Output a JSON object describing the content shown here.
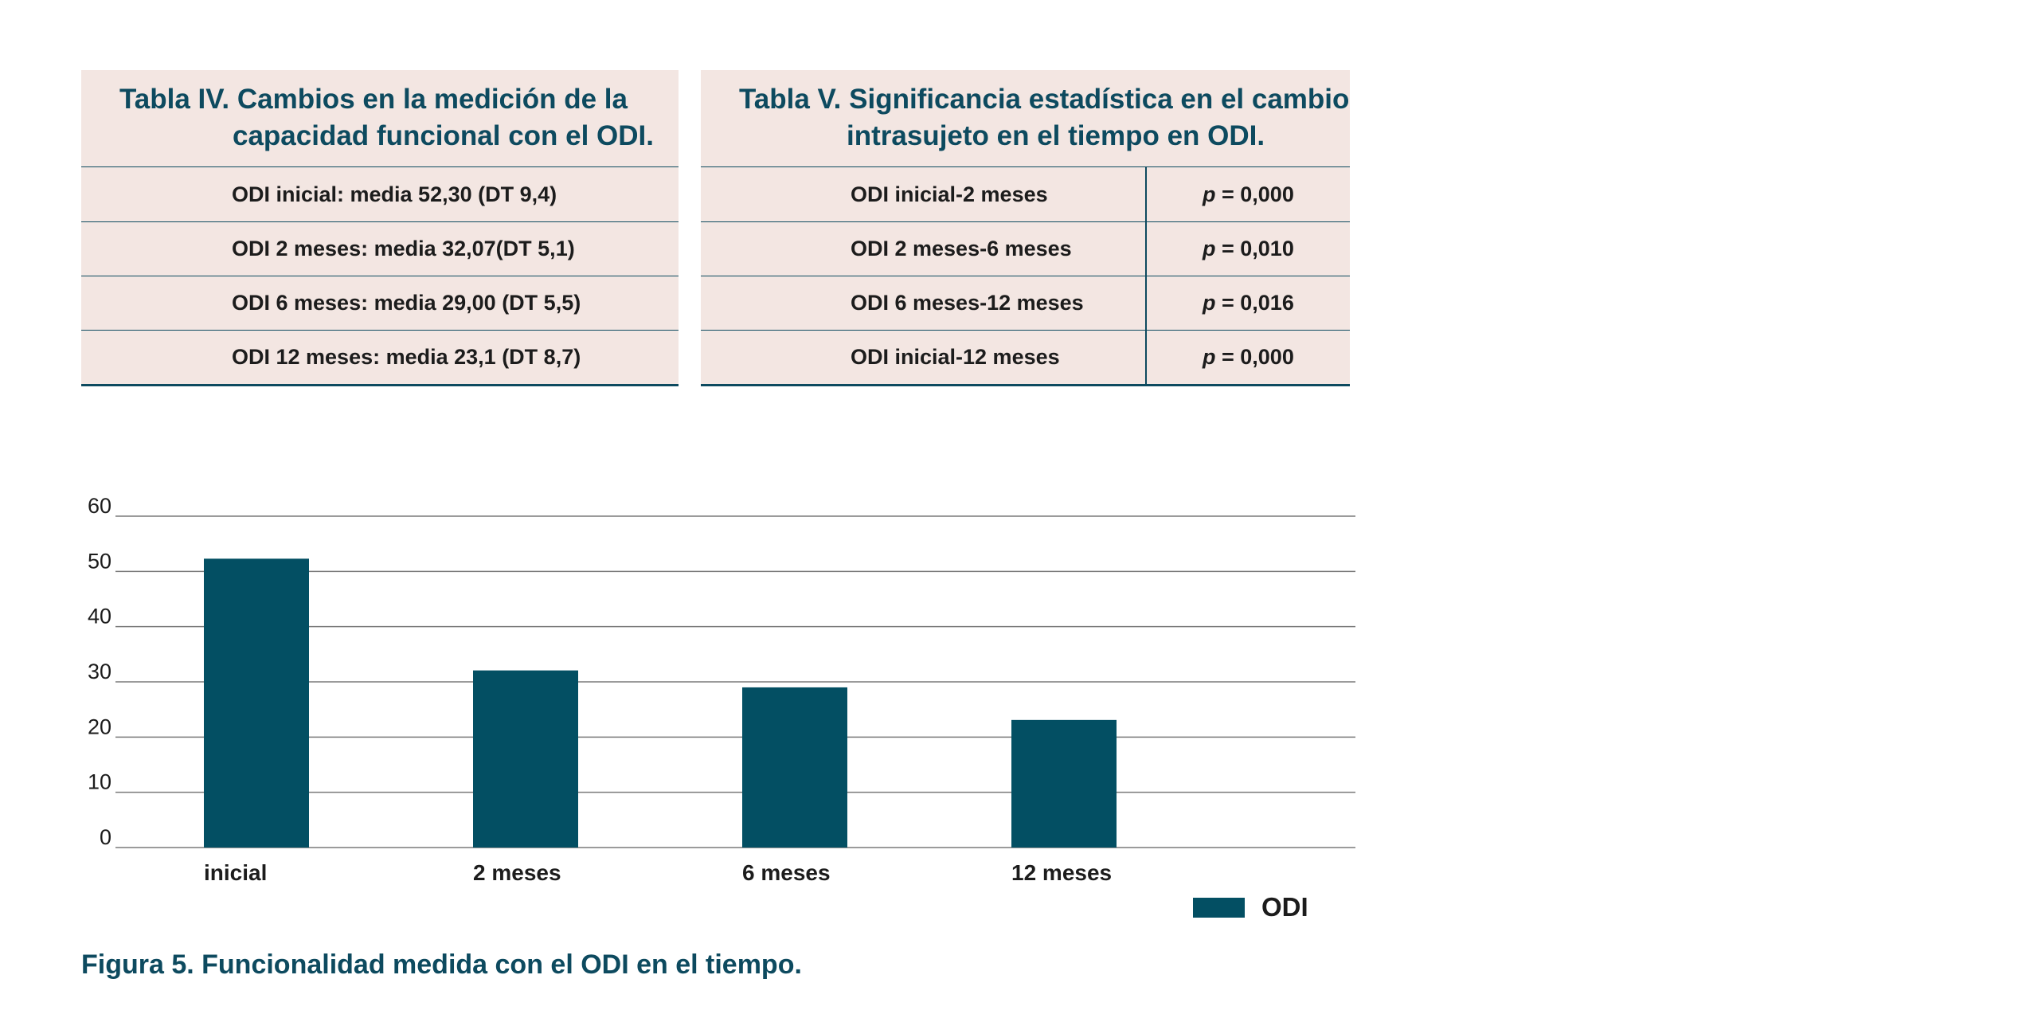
{
  "table4": {
    "title_line1": "Tabla IV. Cambios en la medición de la",
    "title_line2": "capacidad funcional con el ODI.",
    "rows": [
      "ODI inicial: media 52,30 (DT 9,4)",
      "ODI 2 meses: media 32,07(DT 5,1)",
      "ODI 6 meses: media 29,00 (DT 5,5)",
      "ODI 12 meses: media 23,1 (DT 8,7)"
    ]
  },
  "table5": {
    "title_line1": "Tabla V. Significancia estadística en el cambio",
    "title_line2": "intrasujeto en el tiempo en ODI.",
    "p_symbol": "p",
    "rows": [
      {
        "comparison": "ODI inicial-2 meses",
        "p_value": " = 0,000"
      },
      {
        "comparison": "ODI 2 meses-6 meses",
        "p_value": " = 0,010"
      },
      {
        "comparison": "ODI 6 meses-12 meses",
        "p_value": " = 0,016"
      },
      {
        "comparison": "ODI inicial-12 meses",
        "p_value": " = 0,000"
      }
    ]
  },
  "chart_data": {
    "type": "bar",
    "categories": [
      "inicial",
      "2 meses",
      "6 meses",
      "12 meses"
    ],
    "series": [
      {
        "name": "ODI",
        "values": [
          52.3,
          32.07,
          29.0,
          23.1
        ],
        "color": "#034f63"
      }
    ],
    "yticks": [
      0,
      10,
      20,
      30,
      40,
      50,
      60
    ],
    "ylim": [
      0,
      60
    ],
    "grid": true,
    "legend": "bottom-right",
    "title": "",
    "xlabel": "",
    "ylabel": ""
  },
  "caption": "Figura 5. Funcionalidad medida con el ODI en el tiempo."
}
